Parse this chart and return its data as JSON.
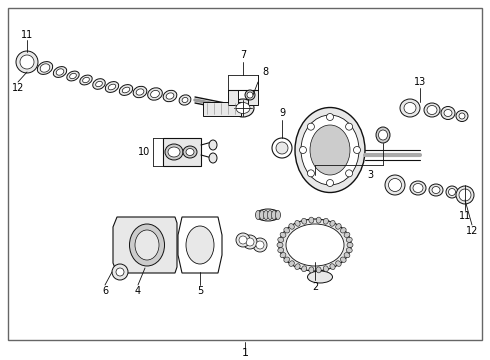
{
  "background_color": "#ffffff",
  "border_color": "#555555",
  "label_color": "#000000",
  "fig_width": 4.9,
  "fig_height": 3.6,
  "dpi": 100,
  "component_color": "#111111",
  "fill_light": "#e8e8e8",
  "fill_mid": "#cccccc",
  "fill_dark": "#aaaaaa"
}
